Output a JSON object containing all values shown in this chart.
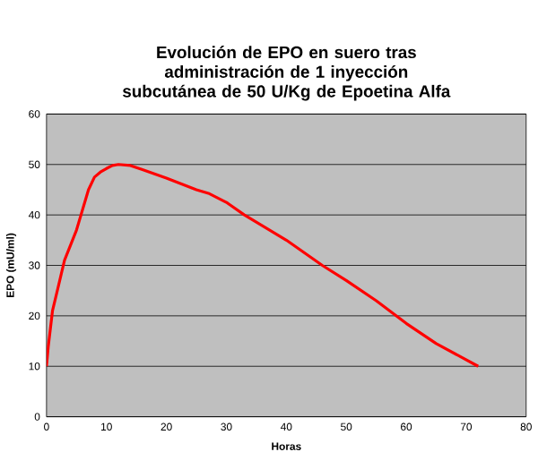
{
  "chart_data": {
    "type": "line",
    "title": "Evolución de EPO en suero tras administración de 1 inyección subcutánea de 50 U/Kg de Epoetina Alfa",
    "xlabel": "Horas",
    "ylabel": "EPO (mU/ml)",
    "x": [
      0,
      0.3,
      1,
      2,
      3,
      5,
      6,
      7,
      8,
      9,
      10,
      11,
      12,
      14,
      16,
      20,
      25,
      27,
      30,
      33,
      40,
      46,
      50,
      55,
      60,
      65,
      72
    ],
    "series": [
      {
        "color": "#ff0000",
        "values": [
          10,
          14,
          21,
          26,
          31,
          37,
          41,
          45,
          47.5,
          48.5,
          49.2,
          49.8,
          50,
          49.8,
          49,
          47.3,
          45,
          44.3,
          42.5,
          40,
          35,
          30,
          27,
          23,
          18.5,
          14.5,
          10
        ]
      }
    ],
    "xlim": [
      0,
      80
    ],
    "ylim": [
      0,
      60
    ],
    "xticks": [
      0,
      10,
      20,
      30,
      40,
      50,
      60,
      70,
      80
    ],
    "yticks": [
      0,
      10,
      20,
      30,
      40,
      50,
      60
    ],
    "grid": "y",
    "marker": "none",
    "line_style": "solid"
  }
}
